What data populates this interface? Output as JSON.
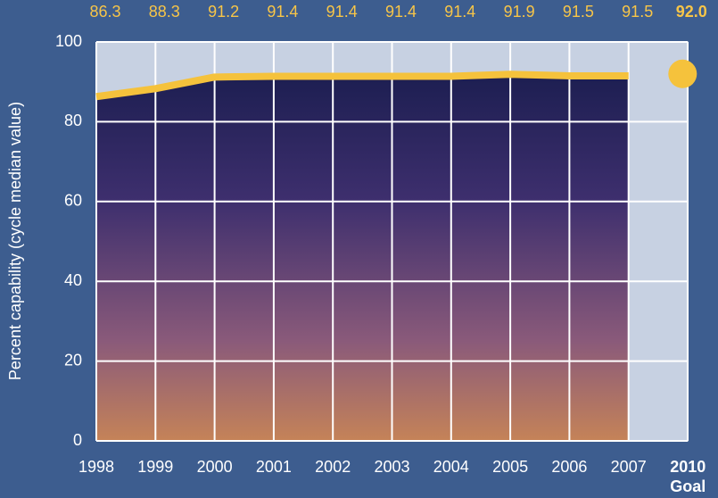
{
  "chart_data": {
    "type": "line",
    "y_axis_label": "Percent capability (cycle median value)",
    "categories": [
      "1998",
      "1999",
      "2000",
      "2001",
      "2002",
      "2003",
      "2004",
      "2005",
      "2006",
      "2007"
    ],
    "values": [
      86.3,
      88.3,
      91.2,
      91.4,
      91.4,
      91.4,
      91.4,
      91.9,
      91.5,
      91.5
    ],
    "color": "#f5c23c",
    "goal": {
      "category": "2010",
      "sublabel": "Goal",
      "value": 92.0,
      "value_label": "92.0"
    },
    "ylim": [
      0,
      100
    ],
    "yticks": [
      0,
      20,
      40,
      60,
      80,
      100
    ],
    "grid": true
  }
}
